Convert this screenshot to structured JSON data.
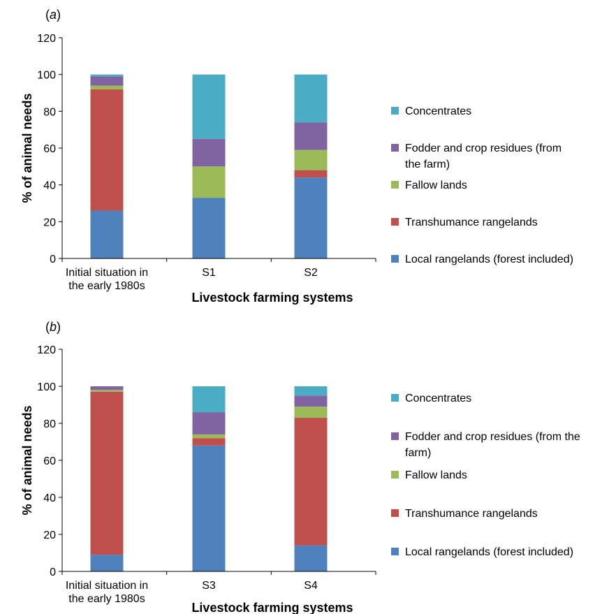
{
  "chart_data": [
    {
      "type": "bar",
      "stacked": true,
      "panel_label_prefix": "(",
      "panel_label_letter": "a",
      "panel_label_suffix": ")",
      "categories": [
        [
          "Initial situation in",
          "the early 1980s"
        ],
        [
          "S1"
        ],
        [
          "S2"
        ]
      ],
      "xlabel": "Livestock farming systems",
      "ylabel": "% of animal needs",
      "ylim": [
        0,
        120
      ],
      "yticks": [
        "0",
        "20",
        "40",
        "60",
        "80",
        "100",
        "120"
      ],
      "grid": false,
      "legend_position": "right",
      "series": [
        {
          "name": [
            "Local rangelands (forest included)"
          ],
          "color": "#4f81bd",
          "values": [
            26,
            33,
            44
          ]
        },
        {
          "name": [
            "Transhumance rangelands"
          ],
          "color": "#c0504d",
          "values": [
            66,
            0,
            4
          ]
        },
        {
          "name": [
            "Fallow lands"
          ],
          "color": "#9bbb59",
          "values": [
            2,
            17,
            11
          ]
        },
        {
          "name": [
            "Fodder and crop residues (from",
            "the farm)"
          ],
          "color": "#8064a2",
          "values": [
            5,
            15,
            15
          ]
        },
        {
          "name": [
            "Concentrates"
          ],
          "color": "#4bacc6",
          "values": [
            1,
            35,
            26
          ]
        }
      ]
    },
    {
      "type": "bar",
      "stacked": true,
      "panel_label_prefix": "(",
      "panel_label_letter": "b",
      "panel_label_suffix": ")",
      "categories": [
        [
          "Initial situation in",
          "the early 1980s"
        ],
        [
          "S3"
        ],
        [
          "S4"
        ]
      ],
      "xlabel": "Livestock farming systems",
      "ylabel": "% of animal needs",
      "ylim": [
        0,
        120
      ],
      "yticks": [
        "0",
        "20",
        "40",
        "60",
        "80",
        "100",
        "120"
      ],
      "grid": false,
      "legend_position": "right",
      "series": [
        {
          "name": [
            "Local rangelands (forest included)"
          ],
          "color": "#4f81bd",
          "values": [
            9,
            68,
            14
          ]
        },
        {
          "name": [
            "Transhumance rangelands"
          ],
          "color": "#c0504d",
          "values": [
            88,
            4,
            69
          ]
        },
        {
          "name": [
            "Fallow lands"
          ],
          "color": "#9bbb59",
          "values": [
            1,
            2,
            6
          ]
        },
        {
          "name": [
            "Fodder and crop residues (from the",
            "farm)"
          ],
          "color": "#8064a2",
          "values": [
            2,
            12,
            6
          ]
        },
        {
          "name": [
            "Concentrates"
          ],
          "color": "#4bacc6",
          "values": [
            0,
            14,
            5
          ]
        }
      ]
    }
  ]
}
